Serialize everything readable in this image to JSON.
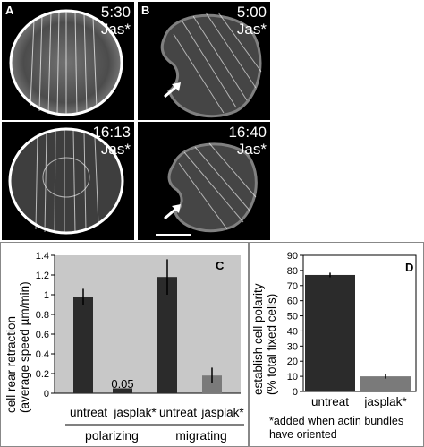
{
  "micrographs": {
    "panel_a_label": "A",
    "panel_b_label": "B",
    "a_top_time": "5:30",
    "a_top_tag": "Jas*",
    "a_bottom_time": "16:13",
    "a_bottom_tag": "Jas*",
    "b_top_time": "5:00",
    "b_top_tag": "Jas*",
    "b_bottom_time": "16:40",
    "b_bottom_tag": "Jas*"
  },
  "chart_data": [
    {
      "type": "bar",
      "panel_label": "C",
      "ylabel_line1": "cell rear retraction",
      "ylabel_line2": "(average speed µm/min)",
      "categories": [
        "untreat",
        "jasplak*",
        "untreat",
        "jasplak*"
      ],
      "groups": [
        "polarizing",
        "migrating"
      ],
      "values": [
        0.98,
        0.05,
        1.18,
        0.18
      ],
      "errors": [
        0.08,
        0,
        0.18,
        0.08
      ],
      "annotations": [
        "0.05"
      ],
      "ylim": [
        0,
        1.4
      ],
      "yticks": [
        "0",
        "0.2",
        "0.4",
        "0.6",
        "0.8",
        "1",
        "1.2",
        "1.4"
      ],
      "background": "#c8c8c8",
      "bar_colors": [
        "#2b2b2b",
        "#2b2b2b",
        "#2b2b2b",
        "#7a7a7a"
      ]
    },
    {
      "type": "bar",
      "panel_label": "D",
      "ylabel_line1": "establish cell polarity",
      "ylabel_line2": "(% total fixed cells)",
      "categories": [
        "untreat",
        "jasplak*"
      ],
      "values": [
        77,
        10
      ],
      "errors": [
        1.5,
        1.5
      ],
      "ylim": [
        0,
        90
      ],
      "yticks": [
        "0",
        "10",
        "20",
        "30",
        "40",
        "50",
        "60",
        "70",
        "80",
        "90"
      ],
      "bar_colors": [
        "#2b2b2b",
        "#7a7a7a"
      ],
      "footnote_line1": "*added when actin bundles",
      "footnote_line2": "have oriented"
    }
  ]
}
